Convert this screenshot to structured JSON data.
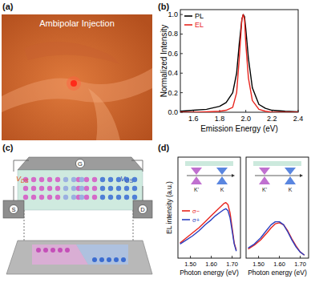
{
  "panels": {
    "labels": [
      "(a)",
      "(b)",
      "(c)",
      "(d)"
    ]
  },
  "image_a": {
    "caption": "Ambipolar Injection"
  },
  "diagram_c": {
    "voltages": [
      {
        "text": "V",
        "sub": "DS"
      },
      {
        "text": "V",
        "sub": "GS"
      }
    ],
    "contacts": [
      "S",
      "D",
      "G"
    ]
  },
  "chart_data": [
    {
      "type": "line",
      "xlabel": "Emission Energy (eV)",
      "ylabel": "Normalized Intensity",
      "x": [
        1.5,
        1.6,
        1.7,
        1.8,
        1.85,
        1.9,
        1.93,
        1.95,
        1.97,
        1.98,
        1.99,
        2.0,
        2.02,
        2.05,
        2.1,
        2.15,
        2.2,
        2.3,
        2.4
      ],
      "xlim": [
        1.5,
        2.4
      ],
      "xticks": [
        1.6,
        1.8,
        {
          "value": 2.0,
          "label": "2.0"
        },
        2.2,
        2.4
      ],
      "ylim": [
        0,
        1.05
      ],
      "yticks": [
        {
          "value": 0,
          "label": "0.0"
        },
        0.2,
        0.4,
        0.6,
        0.8,
        {
          "value": 1,
          "label": "1.0"
        }
      ],
      "legend": "upper left",
      "series": [
        {
          "name": "PL",
          "color": "#000000",
          "values": [
            0.01,
            0.02,
            0.03,
            0.06,
            0.1,
            0.2,
            0.4,
            0.7,
            0.95,
            1.0,
            0.98,
            0.85,
            0.55,
            0.25,
            0.08,
            0.04,
            0.02,
            0.01,
            0.005
          ]
        },
        {
          "name": "EL",
          "color": "#e8251e",
          "values": [
            0,
            0,
            0.005,
            0.01,
            0.02,
            0.05,
            0.2,
            0.55,
            0.95,
            1.0,
            0.95,
            0.7,
            0.35,
            0.12,
            0.03,
            0.01,
            0,
            0,
            0
          ]
        }
      ]
    },
    {
      "type": "line",
      "xlabel": "Photon energy (eV)",
      "ylabel": "EL intensity (a.u.)",
      "x": [
        1.45,
        1.48,
        1.51,
        1.54,
        1.57,
        1.6,
        1.62,
        1.64,
        1.66,
        1.67,
        1.68,
        1.69,
        1.7,
        1.71,
        1.72
      ],
      "xlim": [
        1.44,
        1.74
      ],
      "xticks": [
        {
          "value": 1.5,
          "label": "1.50"
        },
        {
          "value": 1.6,
          "label": "1.60"
        },
        {
          "value": 1.7,
          "label": "1.70"
        }
      ],
      "ylim": [
        0,
        1
      ],
      "tick_labels": "x",
      "legend": "lower left",
      "annotations": [
        "K'",
        "K"
      ],
      "series": [
        {
          "name": "σ−",
          "color": "#e8251e",
          "values": [
            0.15,
            0.2,
            0.25,
            0.3,
            0.36,
            0.42,
            0.46,
            0.5,
            0.54,
            0.55,
            0.53,
            0.45,
            0.3,
            0.15,
            0.08
          ]
        },
        {
          "name": "σ+",
          "color": "#2b3fc0",
          "values": [
            0.14,
            0.18,
            0.22,
            0.27,
            0.33,
            0.38,
            0.42,
            0.45,
            0.48,
            0.49,
            0.47,
            0.4,
            0.27,
            0.14,
            0.07
          ]
        }
      ]
    },
    {
      "type": "line",
      "xlabel": "Photon energy (eV)",
      "x": [
        1.45,
        1.48,
        1.51,
        1.54,
        1.56,
        1.58,
        1.6,
        1.62,
        1.64,
        1.66,
        1.68,
        1.7,
        1.72
      ],
      "xlim": [
        1.44,
        1.74
      ],
      "xticks": [
        {
          "value": 1.5,
          "label": "1.50"
        },
        {
          "value": 1.6,
          "label": "1.60"
        },
        {
          "value": 1.7,
          "label": "1.70"
        }
      ],
      "ylim": [
        0,
        1
      ],
      "tick_labels": "x",
      "annotations": [
        "K'",
        "K"
      ],
      "series": [
        {
          "color": "#e8251e",
          "values": [
            0.09,
            0.13,
            0.18,
            0.25,
            0.3,
            0.34,
            0.35,
            0.33,
            0.27,
            0.19,
            0.12,
            0.06,
            0.03
          ]
        },
        {
          "color": "#2b3fc0",
          "values": [
            0.1,
            0.14,
            0.2,
            0.28,
            0.33,
            0.36,
            0.36,
            0.33,
            0.26,
            0.18,
            0.11,
            0.06,
            0.03
          ]
        }
      ]
    }
  ]
}
